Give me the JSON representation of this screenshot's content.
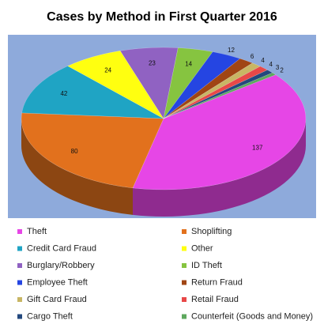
{
  "chart_data": {
    "type": "pie",
    "title": "Cases by Method in First Quarter 2016",
    "categories": [
      "Theft",
      "Shoplifting",
      "Credit Card Fraud",
      "Other",
      "Burglary/Robbery",
      "ID Theft",
      "Employee Theft",
      "Return Fraud",
      "Gift Card Fraud",
      "Retail Fraud",
      "Cargo Theft",
      "Counterfeit (Goods and Money)"
    ],
    "values": [
      137,
      80,
      42,
      24,
      23,
      14,
      12,
      6,
      4,
      4,
      3,
      2
    ],
    "colors": [
      "#e646e6",
      "#e2711d",
      "#1fa4c4",
      "#ffff10",
      "#9062c2",
      "#86c440",
      "#2545e2",
      "#a04514",
      "#c8b664",
      "#e84848",
      "#23487e",
      "#5ea85e"
    ],
    "legend": "bottom"
  }
}
